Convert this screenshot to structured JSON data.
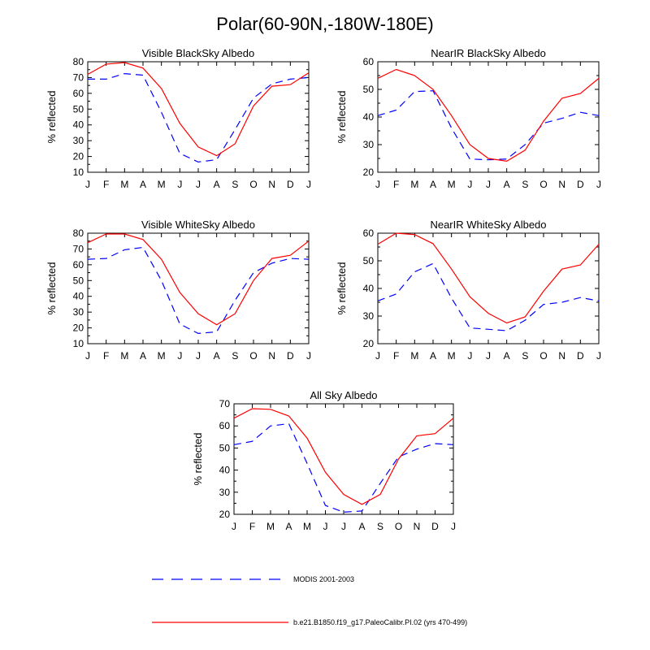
{
  "title": "Polar(60-90N,-180W-180E)",
  "chart_data": [
    {
      "type": "line",
      "title": "Visible BlackSky Albedo",
      "ylabel": "% reflected",
      "categories": [
        "J",
        "F",
        "M",
        "A",
        "M",
        "J",
        "J",
        "A",
        "S",
        "O",
        "N",
        "D",
        "J"
      ],
      "ylim": [
        10,
        80
      ],
      "yticks": [
        10,
        20,
        30,
        40,
        50,
        60,
        70,
        80
      ],
      "series": [
        {
          "name": "MODIS 2001-2003",
          "values": [
            69,
            69,
            72.5,
            71.5,
            48,
            22,
            16.5,
            18,
            37,
            57,
            66,
            69,
            70
          ]
        },
        {
          "name": "b.e21.B1850.f19_g17.PaleoCalibr.PI.02 (yrs 470-499)",
          "values": [
            72,
            78.5,
            79.5,
            76,
            63,
            41,
            26,
            20.5,
            28,
            52,
            64.5,
            65.5,
            73
          ]
        }
      ]
    },
    {
      "type": "line",
      "title": "NearIR BlackSky Albedo",
      "ylabel": "% reflected",
      "categories": [
        "J",
        "F",
        "M",
        "A",
        "M",
        "J",
        "J",
        "A",
        "S",
        "O",
        "N",
        "D",
        "J"
      ],
      "ylim": [
        20,
        60
      ],
      "yticks": [
        20,
        30,
        40,
        50,
        60
      ],
      "series": [
        {
          "name": "MODIS 2001-2003",
          "values": [
            40.5,
            42.5,
            49.2,
            49.5,
            36,
            24.8,
            24.5,
            24.8,
            30,
            37.8,
            39.5,
            41.7,
            40.5
          ]
        },
        {
          "name": "b.e21.B1850.f19_g17.PaleoCalibr.PI.02 (yrs 470-499)",
          "values": [
            54,
            57.2,
            55,
            50,
            40.5,
            30,
            25,
            24,
            28,
            38.5,
            46.8,
            48.5,
            54
          ]
        }
      ]
    },
    {
      "type": "line",
      "title": "Visible WhiteSky Albedo",
      "ylabel": "% reflected",
      "categories": [
        "J",
        "F",
        "M",
        "A",
        "M",
        "J",
        "J",
        "A",
        "S",
        "O",
        "N",
        "D",
        "J"
      ],
      "ylim": [
        10,
        80
      ],
      "yticks": [
        10,
        20,
        30,
        40,
        50,
        60,
        70,
        80
      ],
      "series": [
        {
          "name": "MODIS 2001-2003",
          "values": [
            63.5,
            64,
            69.5,
            71,
            50,
            22.5,
            16.5,
            17.5,
            37.5,
            55,
            61,
            64,
            63.5
          ]
        },
        {
          "name": "b.e21.B1850.f19_g17.PaleoCalibr.PI.02 (yrs 470-499)",
          "values": [
            74,
            79.5,
            79.5,
            76,
            63.5,
            42.5,
            29,
            22,
            29,
            50,
            64,
            66,
            75
          ]
        }
      ]
    },
    {
      "type": "line",
      "title": "NearIR WhiteSky Albedo",
      "ylabel": "% reflected",
      "categories": [
        "J",
        "F",
        "M",
        "A",
        "M",
        "J",
        "J",
        "A",
        "S",
        "O",
        "N",
        "D",
        "J"
      ],
      "ylim": [
        20,
        60
      ],
      "yticks": [
        20,
        30,
        40,
        50,
        60
      ],
      "series": [
        {
          "name": "MODIS 2001-2003",
          "values": [
            35.5,
            38,
            46,
            49,
            36.5,
            25.7,
            25.2,
            24.7,
            28.5,
            34.2,
            35,
            36.7,
            35.5
          ]
        },
        {
          "name": "b.e21.B1850.f19_g17.PaleoCalibr.PI.02 (yrs 470-499)",
          "values": [
            56,
            60,
            59.5,
            56.2,
            47,
            37,
            31,
            27.5,
            29.7,
            39,
            47,
            48.5,
            56
          ]
        }
      ]
    },
    {
      "type": "line",
      "title": "All Sky Albedo",
      "ylabel": "% reflected",
      "categories": [
        "J",
        "F",
        "M",
        "A",
        "M",
        "J",
        "J",
        "A",
        "S",
        "O",
        "N",
        "D",
        "J"
      ],
      "ylim": [
        20,
        70
      ],
      "yticks": [
        20,
        30,
        40,
        50,
        60,
        70
      ],
      "series": [
        {
          "name": "MODIS 2001-2003",
          "values": [
            51.5,
            53,
            60,
            61,
            43,
            24,
            21,
            21.5,
            34,
            46,
            49.5,
            52,
            51.5
          ]
        },
        {
          "name": "b.e21.B1850.f19_g17.PaleoCalibr.PI.02 (yrs 470-499)",
          "values": [
            63.5,
            67.8,
            67.5,
            64.5,
            54.5,
            39,
            29,
            24.5,
            29,
            45,
            55.5,
            56.5,
            63.5
          ]
        }
      ]
    }
  ],
  "legend": [
    {
      "label": "MODIS 2001-2003",
      "style": "dashed",
      "color": "#0000ff"
    },
    {
      "label": "b.e21.B1850.f19_g17.PaleoCalibr.PI.02 (yrs 470-499)",
      "style": "solid",
      "color": "#ff0000"
    }
  ]
}
